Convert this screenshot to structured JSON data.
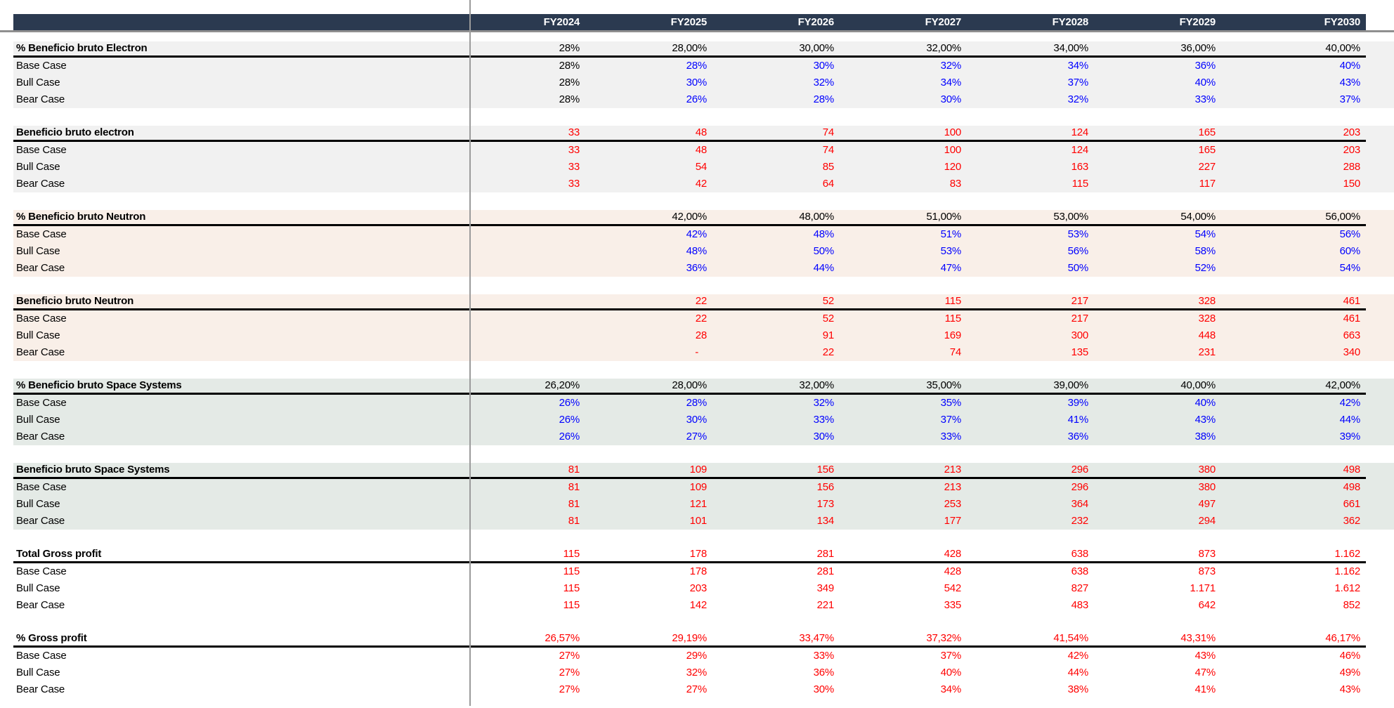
{
  "colors": {
    "header_bg": "#2b3a50",
    "header_text": "#ffffff",
    "red": "#ff0000",
    "blue": "#0000ff",
    "black": "#000000",
    "white": "#ffffff",
    "band_gray": "#f1f1f1",
    "band_pink": "#f9efe8",
    "band_green": "#e4eae6",
    "divider_gray": "#9b9b9b",
    "underline_gray": "#8f8f8f"
  },
  "columns": [
    "FY2024",
    "FY2025",
    "FY2026",
    "FY2027",
    "FY2028",
    "FY2029",
    "FY2030"
  ],
  "sections": [
    {
      "title": "% Beneficio bruto Electron",
      "band": "band_gray",
      "title_values": [
        "28%",
        "28,00%",
        "30,00%",
        "32,00%",
        "34,00%",
        "36,00%",
        "40,00%"
      ],
      "title_value_color": "black",
      "rows": [
        {
          "label": "Base Case",
          "values": [
            "28%",
            "28%",
            "30%",
            "32%",
            "34%",
            "36%",
            "40%"
          ],
          "color": "blue",
          "first_color": "black"
        },
        {
          "label": "Bull Case",
          "values": [
            "28%",
            "30%",
            "32%",
            "34%",
            "37%",
            "40%",
            "43%"
          ],
          "color": "blue",
          "first_color": "black"
        },
        {
          "label": "Bear Case",
          "values": [
            "28%",
            "26%",
            "28%",
            "30%",
            "32%",
            "33%",
            "37%"
          ],
          "color": "blue",
          "first_color": "black"
        }
      ]
    },
    {
      "title": "Beneficio bruto electron",
      "band": "band_gray",
      "title_values": [
        "33",
        "48",
        "74",
        "100",
        "124",
        "165",
        "203"
      ],
      "title_value_color": "red",
      "rows": [
        {
          "label": "Base Case",
          "values": [
            "33",
            "48",
            "74",
            "100",
            "124",
            "165",
            "203"
          ],
          "color": "red"
        },
        {
          "label": "Bull Case",
          "values": [
            "33",
            "54",
            "85",
            "120",
            "163",
            "227",
            "288"
          ],
          "color": "red"
        },
        {
          "label": "Bear Case",
          "values": [
            "33",
            "42",
            "64",
            "83",
            "115",
            "117",
            "150"
          ],
          "color": "red"
        }
      ]
    },
    {
      "title": "% Beneficio bruto Neutron",
      "band": "band_pink",
      "title_values": [
        "",
        "42,00%",
        "48,00%",
        "51,00%",
        "53,00%",
        "54,00%",
        "56,00%"
      ],
      "title_value_color": "black",
      "rows": [
        {
          "label": "Base Case",
          "values": [
            "",
            "42%",
            "48%",
            "51%",
            "53%",
            "54%",
            "56%"
          ],
          "color": "blue"
        },
        {
          "label": "Bull Case",
          "values": [
            "",
            "48%",
            "50%",
            "53%",
            "56%",
            "58%",
            "60%"
          ],
          "color": "blue"
        },
        {
          "label": "Bear Case",
          "values": [
            "",
            "36%",
            "44%",
            "47%",
            "50%",
            "52%",
            "54%"
          ],
          "color": "blue"
        }
      ]
    },
    {
      "title": "Beneficio bruto Neutron",
      "band": "band_pink",
      "title_values": [
        "",
        "22",
        "52",
        "115",
        "217",
        "328",
        "461"
      ],
      "title_value_color": "red",
      "rows": [
        {
          "label": "Base Case",
          "values": [
            "",
            "22",
            "52",
            "115",
            "217",
            "328",
            "461"
          ],
          "color": "red"
        },
        {
          "label": "Bull Case",
          "values": [
            "",
            "28",
            "91",
            "169",
            "300",
            "448",
            "663"
          ],
          "color": "red"
        },
        {
          "label": "Bear Case",
          "values": [
            "",
            "-",
            "22",
            "74",
            "135",
            "231",
            "340"
          ],
          "color": "red"
        }
      ]
    },
    {
      "title": "% Beneficio bruto Space Systems",
      "band": "band_green",
      "title_values": [
        "26,20%",
        "28,00%",
        "32,00%",
        "35,00%",
        "39,00%",
        "40,00%",
        "42,00%"
      ],
      "title_value_color": "black",
      "rows": [
        {
          "label": "Base Case",
          "values": [
            "26%",
            "28%",
            "32%",
            "35%",
            "39%",
            "40%",
            "42%"
          ],
          "color": "blue"
        },
        {
          "label": "Bull Case",
          "values": [
            "26%",
            "30%",
            "33%",
            "37%",
            "41%",
            "43%",
            "44%"
          ],
          "color": "blue"
        },
        {
          "label": "Bear Case",
          "values": [
            "26%",
            "27%",
            "30%",
            "33%",
            "36%",
            "38%",
            "39%"
          ],
          "color": "blue"
        }
      ]
    },
    {
      "title": "Beneficio bruto Space Systems",
      "band": "band_green",
      "title_values": [
        "81",
        "109",
        "156",
        "213",
        "296",
        "380",
        "498"
      ],
      "title_value_color": "red",
      "rows": [
        {
          "label": "Base Case",
          "values": [
            "81",
            "109",
            "156",
            "213",
            "296",
            "380",
            "498"
          ],
          "color": "red"
        },
        {
          "label": "Bull Case",
          "values": [
            "81",
            "121",
            "173",
            "253",
            "364",
            "497",
            "661"
          ],
          "color": "red"
        },
        {
          "label": "Bear Case",
          "values": [
            "81",
            "101",
            "134",
            "177",
            "232",
            "294",
            "362"
          ],
          "color": "red"
        }
      ]
    },
    {
      "title": "Total Gross profit",
      "band": "white",
      "title_values": [
        "115",
        "178",
        "281",
        "428",
        "638",
        "873",
        "1.162"
      ],
      "title_value_color": "red",
      "rows": [
        {
          "label": "Base Case",
          "values": [
            "115",
            "178",
            "281",
            "428",
            "638",
            "873",
            "1.162"
          ],
          "color": "red"
        },
        {
          "label": "Bull Case",
          "values": [
            "115",
            "203",
            "349",
            "542",
            "827",
            "1.171",
            "1.612"
          ],
          "color": "red"
        },
        {
          "label": "Bear Case",
          "values": [
            "115",
            "142",
            "221",
            "335",
            "483",
            "642",
            "852"
          ],
          "color": "red"
        }
      ]
    },
    {
      "title": "% Gross profit",
      "band": "white",
      "title_values": [
        "26,57%",
        "29,19%",
        "33,47%",
        "37,32%",
        "41,54%",
        "43,31%",
        "46,17%"
      ],
      "title_value_color": "red",
      "rows": [
        {
          "label": "Base Case",
          "values": [
            "27%",
            "29%",
            "33%",
            "37%",
            "42%",
            "43%",
            "46%"
          ],
          "color": "red"
        },
        {
          "label": "Bull Case",
          "values": [
            "27%",
            "32%",
            "36%",
            "40%",
            "44%",
            "47%",
            "49%"
          ],
          "color": "red"
        },
        {
          "label": "Bear Case",
          "values": [
            "27%",
            "27%",
            "30%",
            "34%",
            "38%",
            "41%",
            "43%"
          ],
          "color": "red"
        }
      ]
    }
  ]
}
